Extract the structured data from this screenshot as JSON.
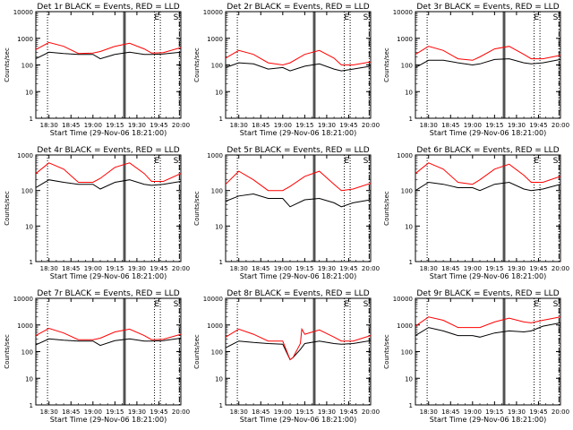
{
  "figure": {
    "colors": {
      "events": "#000000",
      "lld": "#ff0000",
      "background": "#ffffff"
    },
    "x_tick_labels": [
      "18:30",
      "18:45",
      "19:00",
      "19:15",
      "19:30",
      "19:45",
      "20:00"
    ],
    "y_tick_labels": [
      "1",
      "10",
      "100",
      "1000",
      "10000"
    ]
  },
  "chart_data": [
    {
      "type": "line",
      "title": "Det 1r BLACK = Events, RED = LLD",
      "xlabel": "Start Time (29-Nov-06 18:21:00)",
      "ylabel": "Counts/sec",
      "xlim": [
        "18:21",
        "20:00"
      ],
      "ylim": [
        1,
        10000
      ],
      "y_scale": "log",
      "top_ymax": 10000,
      "markers": [
        {
          "label": "E",
          "time": "19:46",
          "style": "dotted"
        },
        {
          "label": "S",
          "time": "19:59",
          "style": "dashdot"
        }
      ],
      "vlines_dotted": [
        "18:29",
        "19:42"
      ],
      "vlines_solid": [
        "19:21",
        "19:22"
      ],
      "series": [
        {
          "name": "Events",
          "x": [
            "18:21",
            "18:30",
            "18:40",
            "18:50",
            "19:00",
            "19:05",
            "19:15",
            "19:25",
            "19:35",
            "19:40",
            "19:48",
            "20:00"
          ],
          "values": [
            170,
            300,
            270,
            250,
            250,
            170,
            250,
            300,
            250,
            250,
            260,
            300
          ]
        },
        {
          "name": "LLD",
          "x": [
            "18:21",
            "18:30",
            "18:40",
            "18:50",
            "19:00",
            "19:05",
            "19:15",
            "19:25",
            "19:35",
            "19:40",
            "19:48",
            "20:00"
          ],
          "values": [
            380,
            700,
            500,
            270,
            280,
            320,
            500,
            650,
            400,
            280,
            290,
            450
          ]
        }
      ]
    },
    {
      "type": "line",
      "title": "Det 2r BLACK = Events, RED = LLD",
      "xlabel": "Start Time (29-Nov-06 18:21:00)",
      "ylabel": "Counts/sec",
      "xlim": [
        "18:21",
        "20:00"
      ],
      "ylim": [
        1,
        10000
      ],
      "y_scale": "log",
      "top_ymax": 10000,
      "markers": [
        {
          "label": "E",
          "time": "19:46",
          "style": "dotted"
        },
        {
          "label": "S",
          "time": "19:59",
          "style": "dashdot"
        }
      ],
      "vlines_dotted": [
        "18:29",
        "19:42"
      ],
      "vlines_solid": [
        "19:21",
        "19:22"
      ],
      "series": [
        {
          "name": "Events",
          "x": [
            "18:21",
            "18:30",
            "18:40",
            "18:50",
            "19:00",
            "19:05",
            "19:15",
            "19:25",
            "19:35",
            "19:40",
            "19:48",
            "20:00"
          ],
          "values": [
            80,
            120,
            110,
            70,
            80,
            60,
            90,
            110,
            70,
            60,
            70,
            90
          ]
        },
        {
          "name": "LLD",
          "x": [
            "18:21",
            "18:30",
            "18:40",
            "18:50",
            "19:00",
            "19:05",
            "19:15",
            "19:25",
            "19:35",
            "19:40",
            "19:48",
            "20:00"
          ],
          "values": [
            180,
            350,
            250,
            120,
            100,
            120,
            250,
            350,
            180,
            100,
            100,
            130
          ]
        }
      ]
    },
    {
      "type": "line",
      "title": "Det 3r BLACK = Events, RED = LLD",
      "xlabel": "Start Time (29-Nov-06 18:21:00)",
      "ylabel": "Counts/sec",
      "xlim": [
        "18:21",
        "20:00"
      ],
      "ylim": [
        1,
        10000
      ],
      "y_scale": "log",
      "top_ymax": 10000,
      "markers": [
        {
          "label": "E",
          "time": "19:46",
          "style": "dotted"
        },
        {
          "label": "S",
          "time": "19:59",
          "style": "dashdot"
        }
      ],
      "vlines_dotted": [
        "18:29",
        "19:42"
      ],
      "vlines_solid": [
        "19:21",
        "19:22"
      ],
      "series": [
        {
          "name": "Events",
          "x": [
            "18:21",
            "18:30",
            "18:40",
            "18:50",
            "19:00",
            "19:05",
            "19:15",
            "19:25",
            "19:35",
            "19:40",
            "19:48",
            "20:00"
          ],
          "values": [
            80,
            150,
            150,
            120,
            100,
            110,
            160,
            170,
            120,
            110,
            120,
            160
          ]
        },
        {
          "name": "LLD",
          "x": [
            "18:21",
            "18:30",
            "18:40",
            "18:50",
            "19:00",
            "19:05",
            "19:15",
            "19:25",
            "19:35",
            "19:40",
            "19:48",
            "20:00"
          ],
          "values": [
            250,
            500,
            350,
            170,
            150,
            200,
            400,
            500,
            250,
            170,
            170,
            230
          ]
        }
      ]
    },
    {
      "type": "line",
      "title": "Det 4r BLACK = Events, RED = LLD",
      "xlabel": "Start Time (29-Nov-06 18:21:00)",
      "ylabel": "Counts/sec",
      "xlim": [
        "18:21",
        "20:00"
      ],
      "ylim": [
        1,
        1000
      ],
      "y_scale": "log",
      "top_ymax": 1000,
      "markers": [
        {
          "label": "E",
          "time": "19:46",
          "style": "dotted"
        },
        {
          "label": "S",
          "time": "19:59",
          "style": "dashdot"
        }
      ],
      "vlines_dotted": [
        "18:29",
        "19:42"
      ],
      "vlines_solid": [
        "19:21",
        "19:22"
      ],
      "series": [
        {
          "name": "Events",
          "x": [
            "18:21",
            "18:30",
            "18:40",
            "18:50",
            "19:00",
            "19:05",
            "19:15",
            "19:25",
            "19:35",
            "19:40",
            "19:48",
            "20:00"
          ],
          "values": [
            120,
            200,
            170,
            150,
            150,
            110,
            170,
            200,
            150,
            140,
            150,
            180
          ]
        },
        {
          "name": "LLD",
          "x": [
            "18:21",
            "18:30",
            "18:40",
            "18:50",
            "19:00",
            "19:05",
            "19:15",
            "19:25",
            "19:35",
            "19:40",
            "19:48",
            "20:00"
          ],
          "values": [
            300,
            600,
            400,
            170,
            170,
            220,
            450,
            600,
            300,
            180,
            180,
            300
          ]
        }
      ]
    },
    {
      "type": "line",
      "title": "Det 5r BLACK = Events, RED = LLD",
      "xlabel": "Start Time (29-Nov-06 18:21:00)",
      "ylabel": "Counts/sec",
      "xlim": [
        "18:21",
        "20:00"
      ],
      "ylim": [
        1,
        1000
      ],
      "y_scale": "log",
      "top_ymax": 1000,
      "markers": [
        {
          "label": "E",
          "time": "19:46",
          "style": "dotted"
        },
        {
          "label": "S",
          "time": "19:59",
          "style": "dashdot"
        }
      ],
      "vlines_dotted": [
        "18:29",
        "19:42"
      ],
      "vlines_solid": [
        "19:21",
        "19:22"
      ],
      "series": [
        {
          "name": "Events",
          "x": [
            "18:21",
            "18:30",
            "18:40",
            "18:50",
            "19:00",
            "19:05",
            "19:15",
            "19:25",
            "19:35",
            "19:40",
            "19:48",
            "20:00"
          ],
          "values": [
            50,
            70,
            80,
            60,
            60,
            35,
            55,
            60,
            45,
            35,
            45,
            55
          ]
        },
        {
          "name": "LLD",
          "x": [
            "18:21",
            "18:30",
            "18:40",
            "18:50",
            "19:00",
            "19:05",
            "19:15",
            "19:25",
            "19:35",
            "19:40",
            "19:48",
            "20:00"
          ],
          "values": [
            150,
            350,
            200,
            100,
            100,
            130,
            250,
            350,
            150,
            100,
            110,
            160
          ]
        }
      ]
    },
    {
      "type": "line",
      "title": "Det 6r BLACK = Events, RED = LLD",
      "xlabel": "Start Time (29-Nov-06 18:21:00)",
      "ylabel": "Counts/sec",
      "xlim": [
        "18:21",
        "20:00"
      ],
      "ylim": [
        1,
        1000
      ],
      "y_scale": "log",
      "top_ymax": 1000,
      "markers": [
        {
          "label": "E",
          "time": "19:46",
          "style": "dotted"
        },
        {
          "label": "S",
          "time": "19:59",
          "style": "dashdot"
        }
      ],
      "vlines_dotted": [
        "18:29",
        "19:42"
      ],
      "vlines_solid": [
        "19:21",
        "19:22"
      ],
      "series": [
        {
          "name": "Events",
          "x": [
            "18:21",
            "18:30",
            "18:40",
            "18:50",
            "19:00",
            "19:05",
            "19:15",
            "19:25",
            "19:35",
            "19:40",
            "19:48",
            "20:00"
          ],
          "values": [
            100,
            170,
            150,
            120,
            120,
            100,
            150,
            170,
            110,
            100,
            110,
            150
          ]
        },
        {
          "name": "LLD",
          "x": [
            "18:21",
            "18:30",
            "18:40",
            "18:50",
            "19:00",
            "19:05",
            "19:15",
            "19:25",
            "19:35",
            "19:40",
            "19:48",
            "20:00"
          ],
          "values": [
            300,
            600,
            400,
            170,
            150,
            200,
            400,
            550,
            270,
            170,
            170,
            250
          ]
        }
      ]
    },
    {
      "type": "line",
      "title": "Det 7r BLACK = Events, RED = LLD",
      "xlabel": "Start Time (29-Nov-06 18:21:00)",
      "ylabel": "Counts/sec",
      "xlim": [
        "18:21",
        "20:00"
      ],
      "ylim": [
        1,
        10000
      ],
      "y_scale": "log",
      "top_ymax": 10000,
      "markers": [
        {
          "label": "E",
          "time": "19:46",
          "style": "dotted"
        },
        {
          "label": "S",
          "time": "19:59",
          "style": "dashdot"
        }
      ],
      "vlines_dotted": [
        "18:29",
        "19:42"
      ],
      "vlines_solid": [
        "19:21",
        "19:22"
      ],
      "series": [
        {
          "name": "Events",
          "x": [
            "18:21",
            "18:30",
            "18:40",
            "18:50",
            "19:00",
            "19:05",
            "19:15",
            "19:25",
            "19:35",
            "19:40",
            "19:48",
            "20:00"
          ],
          "values": [
            180,
            300,
            270,
            250,
            250,
            170,
            260,
            300,
            250,
            250,
            260,
            320
          ]
        },
        {
          "name": "LLD",
          "x": [
            "18:21",
            "18:30",
            "18:40",
            "18:50",
            "19:00",
            "19:05",
            "19:15",
            "19:25",
            "19:35",
            "19:40",
            "19:48",
            "20:00"
          ],
          "values": [
            400,
            750,
            500,
            280,
            280,
            320,
            550,
            700,
            400,
            280,
            290,
            450
          ]
        }
      ]
    },
    {
      "type": "line",
      "title": "Det 8r BLACK = Events, RED = LLD",
      "xlabel": "Start Time (29-Nov-06 18:21:00)",
      "ylabel": "Counts/sec",
      "xlim": [
        "18:21",
        "20:00"
      ],
      "ylim": [
        1,
        10000
      ],
      "y_scale": "log",
      "top_ymax": 10000,
      "markers": [
        {
          "label": "E",
          "time": "19:46",
          "style": "dotted"
        },
        {
          "label": "S",
          "time": "19:59",
          "style": "dashdot"
        }
      ],
      "vlines_dotted": [
        "18:29",
        "19:42"
      ],
      "vlines_solid": [
        "19:21",
        "19:22"
      ],
      "series": [
        {
          "name": "Events",
          "x": [
            "18:21",
            "18:30",
            "18:40",
            "18:50",
            "19:00",
            "19:05",
            "19:07",
            "19:12",
            "19:15",
            "19:25",
            "19:35",
            "19:40",
            "19:48",
            "20:00"
          ],
          "values": [
            140,
            250,
            220,
            200,
            190,
            50,
            60,
            120,
            200,
            250,
            200,
            190,
            200,
            260
          ]
        },
        {
          "name": "LLD",
          "x": [
            "18:21",
            "18:30",
            "18:40",
            "18:50",
            "19:00",
            "19:05",
            "19:07",
            "19:12",
            "19:13",
            "19:15",
            "19:25",
            "19:35",
            "19:40",
            "19:48",
            "20:00"
          ],
          "values": [
            350,
            700,
            450,
            250,
            250,
            50,
            60,
            200,
            700,
            450,
            650,
            350,
            250,
            250,
            400
          ]
        }
      ]
    },
    {
      "type": "line",
      "title": "Det 9r BLACK = Events, RED = LLD",
      "xlabel": "Start Time (29-Nov-06 18:21:00)",
      "ylabel": "Counts/sec",
      "xlim": [
        "18:21",
        "20:00"
      ],
      "ylim": [
        1,
        10000
      ],
      "y_scale": "log",
      "top_ymax": 10000,
      "markers": [
        {
          "label": "E",
          "time": "19:46",
          "style": "dotted"
        },
        {
          "label": "S",
          "time": "19:59",
          "style": "dashdot"
        }
      ],
      "vlines_dotted": [
        "18:29",
        "19:42"
      ],
      "vlines_solid": [
        "19:21",
        "19:22"
      ],
      "series": [
        {
          "name": "Events",
          "x": [
            "18:21",
            "18:30",
            "18:40",
            "18:50",
            "19:00",
            "19:05",
            "19:15",
            "19:25",
            "19:35",
            "19:40",
            "19:48",
            "20:00"
          ],
          "values": [
            400,
            800,
            600,
            400,
            400,
            350,
            500,
            600,
            550,
            600,
            900,
            1200
          ]
        },
        {
          "name": "LLD",
          "x": [
            "18:21",
            "18:30",
            "18:40",
            "18:50",
            "19:00",
            "19:05",
            "19:15",
            "19:25",
            "19:35",
            "19:40",
            "19:48",
            "20:00"
          ],
          "values": [
            900,
            2000,
            1500,
            800,
            800,
            800,
            1300,
            1800,
            1300,
            1200,
            1500,
            2000
          ]
        }
      ]
    }
  ]
}
